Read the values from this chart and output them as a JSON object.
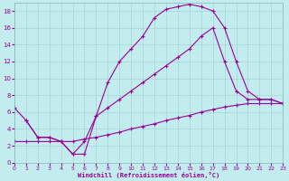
{
  "xlabel": "Windchill (Refroidissement éolien,°C)",
  "background_color": "#c2ecee",
  "line_color": "#990099",
  "xlim": [
    0,
    23
  ],
  "ylim": [
    0,
    19
  ],
  "xticks": [
    0,
    1,
    2,
    3,
    4,
    5,
    6,
    7,
    8,
    9,
    10,
    11,
    12,
    13,
    14,
    15,
    16,
    17,
    18,
    19,
    20,
    21,
    22,
    23
  ],
  "yticks": [
    0,
    2,
    4,
    6,
    8,
    10,
    12,
    14,
    16,
    18
  ],
  "series": [
    {
      "x": [
        1,
        2,
        3,
        4,
        5,
        6,
        7,
        8,
        9,
        10,
        11,
        12,
        13,
        14,
        15,
        16,
        17,
        18,
        19,
        20,
        21,
        22,
        23
      ],
      "y": [
        5,
        3,
        3,
        2.5,
        1,
        1,
        5.5,
        9.5,
        12,
        13.5,
        15,
        17.2,
        18.2,
        18.5,
        18.8,
        18.5,
        18,
        16,
        12,
        8.5,
        7.5,
        7.5,
        7
      ]
    },
    {
      "x": [
        0,
        1,
        2,
        3,
        4,
        5,
        6,
        7,
        8,
        9,
        10,
        11,
        12,
        13,
        14,
        15,
        16,
        17,
        18,
        19,
        20,
        21,
        22,
        23
      ],
      "y": [
        6.5,
        5,
        3,
        3,
        2.5,
        1,
        2.5,
        5.5,
        6.5,
        7.5,
        8.5,
        9.5,
        10.5,
        11.5,
        12.5,
        13.5,
        15,
        16,
        12,
        8.5,
        7.5,
        7.5,
        7.5,
        7
      ]
    },
    {
      "x": [
        0,
        1,
        2,
        3,
        4,
        5,
        6,
        7,
        8,
        9,
        10,
        11,
        12,
        13,
        14,
        15,
        16,
        17,
        18,
        19,
        20,
        21,
        22,
        23
      ],
      "y": [
        2.5,
        2.5,
        2.5,
        2.5,
        2.5,
        2.5,
        2.8,
        3.0,
        3.3,
        3.6,
        4.0,
        4.3,
        4.6,
        5.0,
        5.3,
        5.6,
        6.0,
        6.3,
        6.6,
        6.8,
        7.0,
        7.0,
        7.0,
        7.0
      ]
    }
  ]
}
